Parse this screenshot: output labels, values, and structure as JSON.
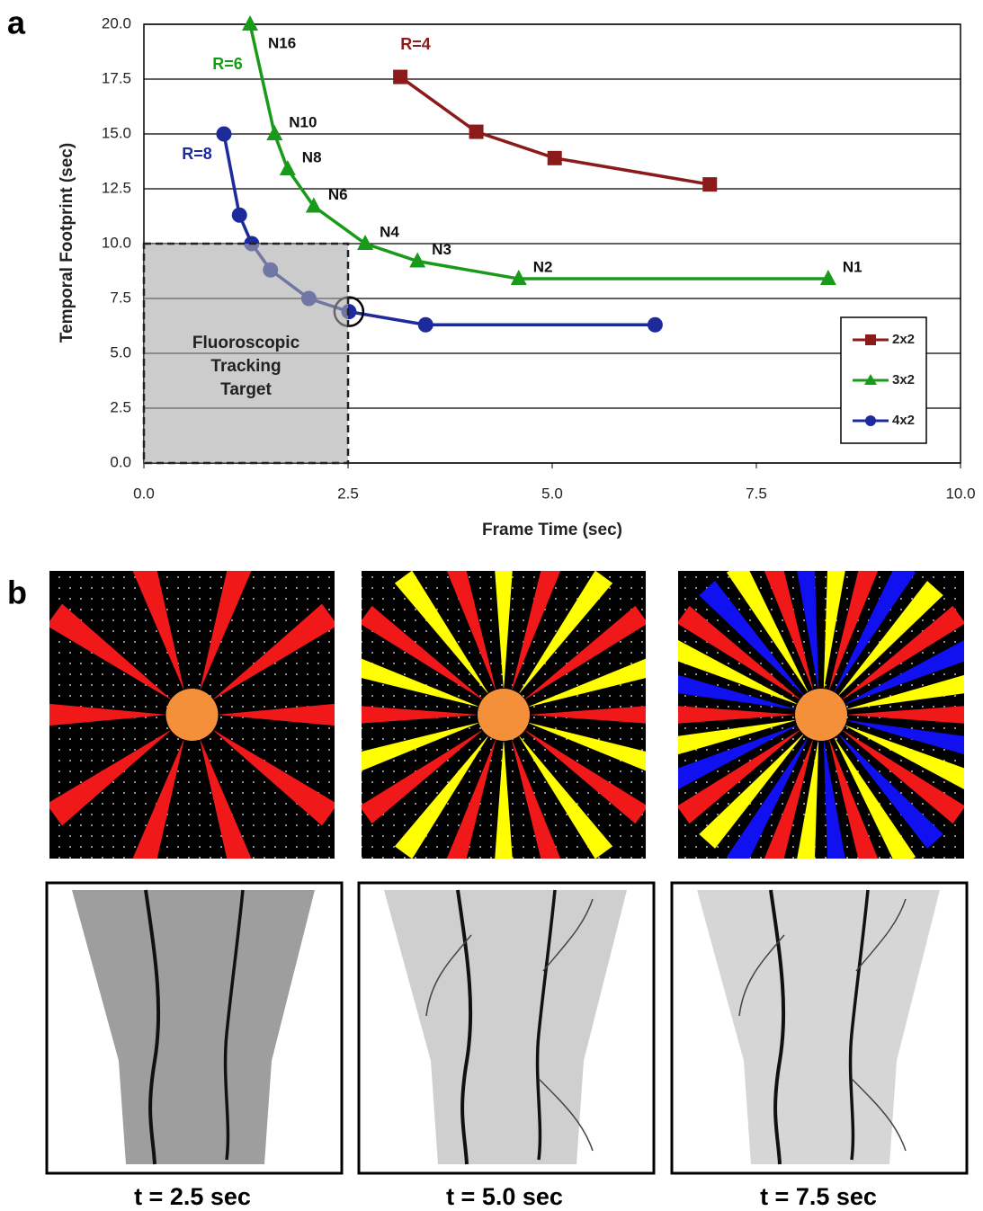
{
  "chart_data": {
    "type": "line",
    "xlabel": "Frame Time (sec)",
    "ylabel": "Temporal Footprint (sec)",
    "xlim": [
      0,
      10
    ],
    "ylim": [
      0,
      20
    ],
    "xticks": [
      {
        "value": 0,
        "label": "0.0"
      },
      2.5,
      {
        "value": 5,
        "label": "5.0"
      },
      7.5,
      {
        "value": 10,
        "label": "10.0"
      }
    ],
    "yticks": [
      {
        "value": 0,
        "label": "0.0"
      },
      2.5,
      {
        "value": 5,
        "label": "5.0"
      },
      7.5,
      {
        "value": 10,
        "label": "10.0"
      },
      12.5,
      {
        "value": 15,
        "label": "15.0"
      },
      17.5,
      {
        "value": 20,
        "label": "20.0"
      }
    ],
    "grid": true,
    "legend": "lower right",
    "series": [
      {
        "name": "2x2",
        "color": "#8b1a1a",
        "marker": "square",
        "annotation": "R=4",
        "x": [
          3.14,
          4.07,
          5.03,
          6.93
        ],
        "values": [
          17.6,
          15.1,
          13.9,
          12.7
        ]
      },
      {
        "name": "3x2",
        "color": "#1a9a1a",
        "marker": "triangle",
        "annotation": "R=6",
        "x": [
          1.3,
          1.6,
          1.76,
          2.08,
          2.71,
          3.35,
          4.59,
          8.38
        ],
        "values": [
          20.0,
          15.0,
          13.4,
          11.7,
          10.0,
          9.2,
          8.4,
          8.4
        ],
        "point_labels": [
          "N16",
          "N10",
          "N8",
          "N6",
          "N4",
          "N3",
          "N2",
          "N1"
        ]
      },
      {
        "name": "4x2",
        "color": "#1c2a9c",
        "marker": "circle",
        "annotation": "R=8",
        "x": [
          0.98,
          1.17,
          1.32,
          1.55,
          2.02,
          2.51,
          3.45,
          6.26
        ],
        "values": [
          15.0,
          11.3,
          10.0,
          8.8,
          7.5,
          6.9,
          6.3,
          6.3
        ]
      }
    ],
    "target_box": {
      "x": [
        0,
        2.5
      ],
      "y": [
        0,
        10
      ],
      "label": [
        "Fluoroscopic",
        "Tracking",
        "Target"
      ]
    }
  },
  "panel_labels": [
    "a",
    "b"
  ],
  "captions": [
    "t = 2.5 sec",
    "t = 5.0 sec",
    "t = 7.5 sec"
  ]
}
